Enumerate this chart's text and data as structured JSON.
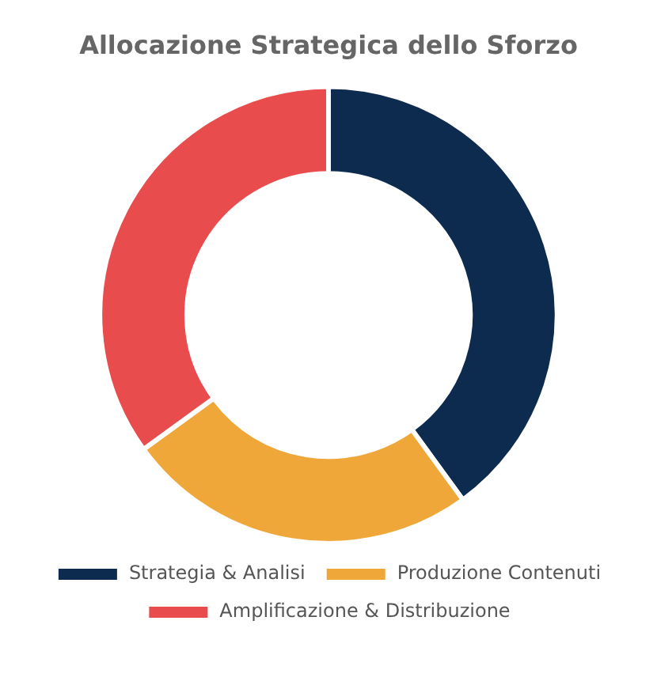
{
  "chart_data": {
    "type": "donut",
    "title": "Allocazione Strategica dello Sforzo",
    "categories": [
      "Strategia & Analisi",
      "Produzione Contenuti",
      "Amplificazione & Distribuzione"
    ],
    "values": [
      40,
      25,
      35
    ],
    "colors": [
      "#0d2b4e",
      "#f0a73a",
      "#e84c4c"
    ],
    "legend": "bottom"
  }
}
